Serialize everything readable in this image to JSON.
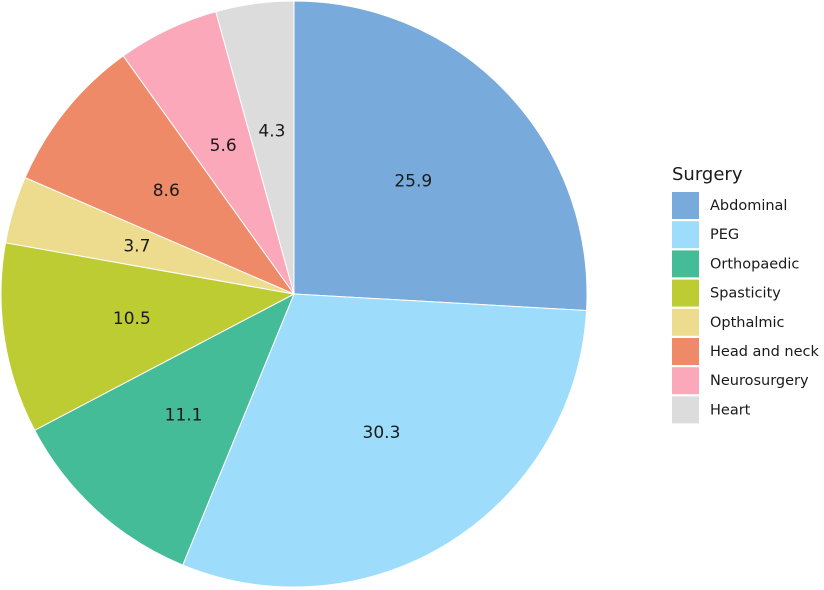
{
  "chart_data": {
    "type": "pie",
    "legend_title": "Surgery",
    "legend_position": "right",
    "start": "top",
    "direction": "clockwise",
    "slices": [
      {
        "name": "Abdominal",
        "value": 25.9,
        "label": "25.9",
        "color": "#78AADC"
      },
      {
        "name": "PEG",
        "value": 30.3,
        "label": "30.3",
        "color": "#9DDDFB"
      },
      {
        "name": "Orthopaedic",
        "value": 11.1,
        "label": "11.1",
        "color": "#45BC98"
      },
      {
        "name": "Spasticity",
        "value": 10.5,
        "label": "10.5",
        "color": "#BECC33"
      },
      {
        "name": "Opthalmic",
        "value": 3.7,
        "label": "3.7",
        "color": "#EDDC8E"
      },
      {
        "name": "Head and neck",
        "value": 8.6,
        "label": "8.6",
        "color": "#EF8A68"
      },
      {
        "name": "Neurosurgery",
        "value": 5.6,
        "label": "5.6",
        "color": "#FBA8BA"
      },
      {
        "name": "Heart",
        "value": 4.3,
        "label": "4.3",
        "color": "#DCDCDC"
      }
    ]
  }
}
